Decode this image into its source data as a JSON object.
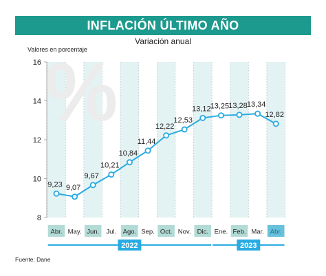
{
  "title": "INFLACIÓN ÚLTIMO AÑO",
  "subtitle": "Variación anual",
  "source": "Fuente: Dane",
  "colors": {
    "accent": "#1c9a8e",
    "line": "#29abe2",
    "shade": "#e3f2f2",
    "month_highlight": "#b2dbd6",
    "year_bar": "#29abe2"
  },
  "chart_data": {
    "type": "line",
    "ylabel": "Valores en porcentaje",
    "ylim": [
      8,
      16
    ],
    "yticks": [
      8,
      10,
      12,
      14,
      16
    ],
    "categories": [
      "Abr.",
      "May.",
      "Jun.",
      "Jul.",
      "Ago.",
      "Sep.",
      "Oct.",
      "Nov.",
      "Dic.",
      "Ene.",
      "Feb.",
      "Mar.",
      "Abr."
    ],
    "values": [
      9.23,
      9.07,
      9.67,
      10.21,
      10.84,
      11.44,
      12.22,
      12.53,
      13.12,
      13.25,
      13.28,
      13.34,
      12.82
    ],
    "value_labels": [
      "9,23",
      "9,07",
      "9,67",
      "10,21",
      "10,84",
      "11,44",
      "12,22",
      "12,53",
      "13,12",
      "13,25",
      "13,28",
      "13,34",
      "12,82"
    ],
    "years": [
      {
        "label": "2022",
        "from": 0,
        "to": 8
      },
      {
        "label": "2023",
        "from": 9,
        "to": 12
      }
    ],
    "grid": false,
    "background_watermark": "%"
  }
}
